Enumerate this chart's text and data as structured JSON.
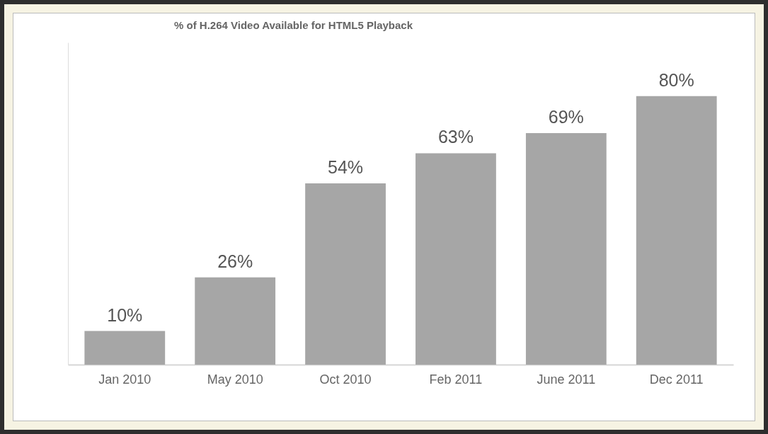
{
  "chart_data": {
    "type": "bar",
    "title": "% of H.264 Video Available for HTML5 Playback",
    "categories": [
      "Jan 2010",
      "May 2010",
      "Oct 2010",
      "Feb 2011",
      "June 2011",
      "Dec 2011"
    ],
    "values": [
      10,
      26,
      54,
      63,
      69,
      80
    ],
    "value_labels": [
      "10%",
      "26%",
      "54%",
      "63%",
      "69%",
      "80%"
    ],
    "color": "#a6a6a6"
  }
}
